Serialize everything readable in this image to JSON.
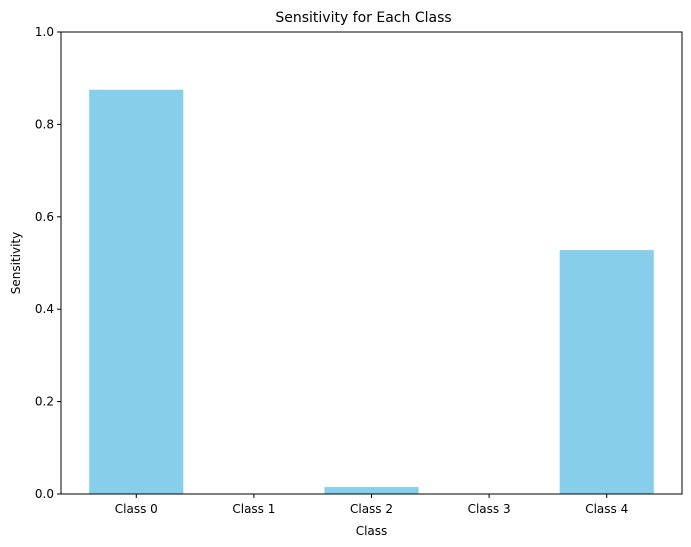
{
  "chart_data": {
    "type": "bar",
    "title": "Sensitivity for Each Class",
    "xlabel": "Class",
    "ylabel": "Sensitivity",
    "categories": [
      "Class 0",
      "Class 1",
      "Class 2",
      "Class 3",
      "Class 4"
    ],
    "values": [
      0.875,
      0.0,
      0.015,
      0.0,
      0.528
    ],
    "ylim": [
      0,
      1
    ],
    "yticks": [
      "0.0",
      "0.2",
      "0.4",
      "0.6",
      "0.8",
      "1.0"
    ],
    "yticks_values": [
      0,
      0.2,
      0.4,
      0.6,
      0.8,
      1.0
    ],
    "bar_color": "#87ceeb",
    "grid": false,
    "legend": "none"
  }
}
